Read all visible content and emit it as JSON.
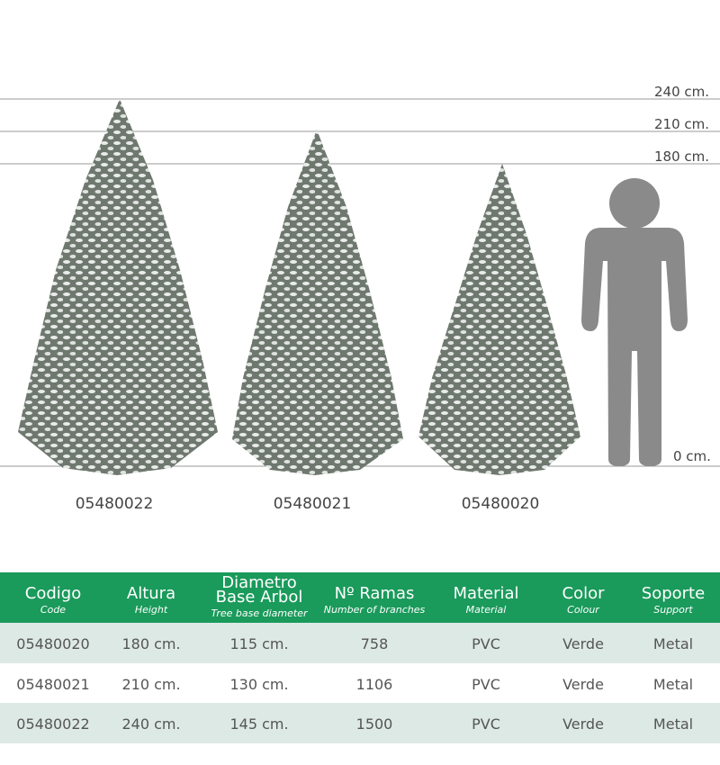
{
  "scale": {
    "labels": [
      "240 cm.",
      "210 cm.",
      "180 cm.",
      "0 cm."
    ]
  },
  "trees": {
    "codes": [
      "05480022",
      "05480021",
      "05480020"
    ]
  },
  "table": {
    "columns": [
      {
        "title": "Codigo",
        "subtitle": "Code"
      },
      {
        "title": "Altura",
        "subtitle": "Height"
      },
      {
        "title": "Diametro Base Arbol",
        "subtitle": "Tree base diameter"
      },
      {
        "title": "Nº Ramas",
        "subtitle": "Number of branches"
      },
      {
        "title": "Material",
        "subtitle": "Material"
      },
      {
        "title": "Color",
        "subtitle": "Colour"
      },
      {
        "title": "Soporte",
        "subtitle": "Support"
      }
    ],
    "rows": [
      [
        "05480020",
        "180 cm.",
        "115 cm.",
        "758",
        "PVC",
        "Verde",
        "Metal"
      ],
      [
        "05480021",
        "210 cm.",
        "130 cm.",
        "1106",
        "PVC",
        "Verde",
        "Metal"
      ],
      [
        "05480022",
        "240 cm.",
        "145 cm.",
        "1500",
        "PVC",
        "Verde",
        "Metal"
      ]
    ]
  }
}
